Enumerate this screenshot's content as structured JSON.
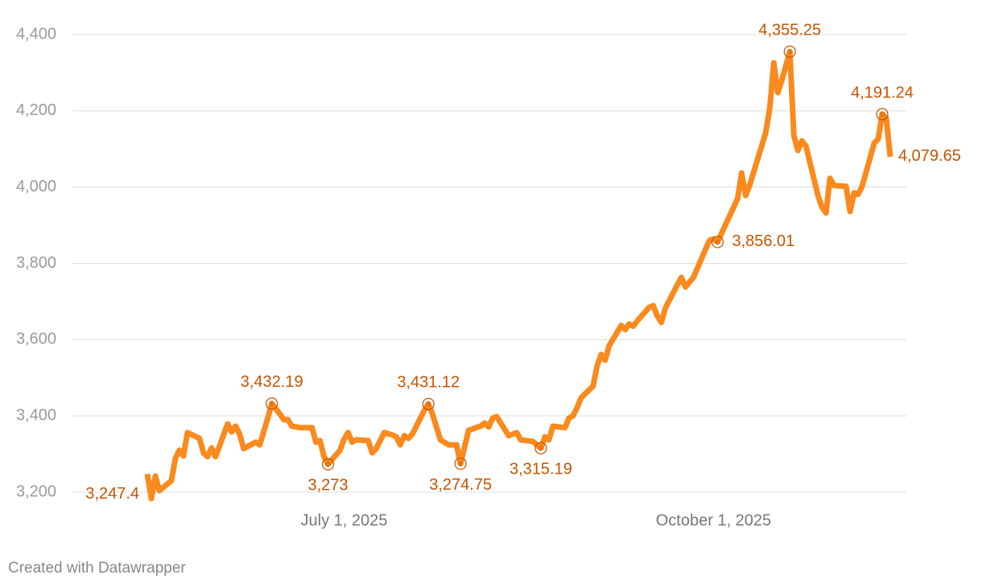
{
  "chart_data": {
    "type": "line",
    "credit": "Created with Datawrapper",
    "x": [
      "2025-05-13",
      "2025-05-14",
      "2025-05-15",
      "2025-05-16",
      "2025-05-19",
      "2025-05-20",
      "2025-05-21",
      "2025-05-22",
      "2025-05-23",
      "2025-05-26",
      "2025-05-27",
      "2025-05-28",
      "2025-05-29",
      "2025-05-30",
      "2025-06-02",
      "2025-06-03",
      "2025-06-04",
      "2025-06-05",
      "2025-06-06",
      "2025-06-09",
      "2025-06-10",
      "2025-06-12",
      "2025-06-13",
      "2025-06-15",
      "2025-06-16",
      "2025-06-17",
      "2025-06-18",
      "2025-06-20",
      "2025-06-23",
      "2025-06-24",
      "2025-06-25",
      "2025-06-26",
      "2025-06-27",
      "2025-06-30",
      "2025-07-01",
      "2025-07-02",
      "2025-07-03",
      "2025-07-04",
      "2025-07-07",
      "2025-07-08",
      "2025-07-09",
      "2025-07-11",
      "2025-07-13",
      "2025-07-14",
      "2025-07-15",
      "2025-07-16",
      "2025-07-17",
      "2025-07-18",
      "2025-07-21",
      "2025-07-22",
      "2025-07-23",
      "2025-07-25",
      "2025-07-27",
      "2025-07-29",
      "2025-07-30",
      "2025-08-01",
      "2025-08-04",
      "2025-08-05",
      "2025-08-06",
      "2025-08-07",
      "2025-08-08",
      "2025-08-11",
      "2025-08-13",
      "2025-08-14",
      "2025-08-17",
      "2025-08-18",
      "2025-08-19",
      "2025-08-20",
      "2025-08-21",
      "2025-08-22",
      "2025-08-25",
      "2025-08-26",
      "2025-08-27",
      "2025-08-28",
      "2025-08-29",
      "2025-09-01",
      "2025-09-02",
      "2025-09-03",
      "2025-09-04",
      "2025-09-05",
      "2025-09-08",
      "2025-09-09",
      "2025-09-10",
      "2025-09-11",
      "2025-09-12",
      "2025-09-15",
      "2025-09-16",
      "2025-09-17",
      "2025-09-18",
      "2025-09-19",
      "2025-09-22",
      "2025-09-23",
      "2025-09-24",
      "2025-09-26",
      "2025-09-29",
      "2025-09-30",
      "2025-10-01",
      "2025-10-02",
      "2025-10-03",
      "2025-10-06",
      "2025-10-07",
      "2025-10-08",
      "2025-10-09",
      "2025-10-10",
      "2025-10-14",
      "2025-10-15",
      "2025-10-16",
      "2025-10-17",
      "2025-10-18",
      "2025-10-20",
      "2025-10-21",
      "2025-10-22",
      "2025-10-23",
      "2025-10-24",
      "2025-10-27",
      "2025-10-28",
      "2025-10-29",
      "2025-10-30",
      "2025-10-31",
      "2025-11-03",
      "2025-11-04",
      "2025-11-05",
      "2025-11-06",
      "2025-11-07",
      "2025-11-10",
      "2025-11-11",
      "2025-11-12",
      "2025-11-13",
      "2025-11-14"
    ],
    "series": [
      {
        "color": "#fa8a1e",
        "values": [
          3247.4,
          3183,
          3242,
          3204,
          3230,
          3289,
          3310,
          3295,
          3356,
          3341,
          3303,
          3293,
          3316,
          3293,
          3379,
          3358,
          3373,
          3352,
          3314,
          3331,
          3324,
          3394,
          3432.19,
          3405,
          3390,
          3390,
          3373,
          3369,
          3369,
          3331,
          3335,
          3293,
          3273,
          3310,
          3339,
          3356,
          3331,
          3337,
          3335,
          3303,
          3314,
          3356,
          3350,
          3345,
          3324,
          3348,
          3341,
          3352,
          3415,
          3431.12,
          3405,
          3337,
          3324,
          3324,
          3274.75,
          3362,
          3373,
          3381,
          3371,
          3394,
          3398,
          3348,
          3356,
          3337,
          3333,
          3324,
          3315.19,
          3345,
          3337,
          3373,
          3369,
          3394,
          3400,
          3421,
          3447,
          3478,
          3531,
          3561,
          3546,
          3584,
          3637,
          3626,
          3641,
          3635,
          3649,
          3685,
          3689,
          3662,
          3645,
          3683,
          3744,
          3763,
          3738,
          3763,
          3837,
          3860,
          3864,
          3856.01,
          3879,
          3947,
          3970,
          4037,
          3978,
          4005,
          4143,
          4206,
          4326,
          4248,
          4280,
          4355.25,
          4136,
          4096,
          4121,
          4108,
          3978,
          3947,
          3932,
          4023,
          4004,
          4002,
          3936,
          3985,
          3981,
          4002,
          4115,
          4126,
          4191.24,
          4181,
          4079.65
        ],
        "value_labels": [
          "3,247.4",
          null,
          null,
          null,
          null,
          null,
          null,
          null,
          null,
          null,
          null,
          null,
          null,
          null,
          null,
          null,
          null,
          null,
          null,
          null,
          null,
          null,
          "3,432.19",
          null,
          null,
          null,
          null,
          null,
          null,
          null,
          null,
          null,
          "3,273",
          null,
          null,
          null,
          null,
          null,
          null,
          null,
          null,
          null,
          null,
          null,
          null,
          null,
          null,
          null,
          null,
          "3,431.12",
          null,
          null,
          null,
          null,
          "3,274.75",
          null,
          null,
          null,
          null,
          null,
          null,
          null,
          null,
          null,
          null,
          null,
          "3,315.19",
          null,
          null,
          null,
          null,
          null,
          null,
          null,
          null,
          null,
          null,
          null,
          null,
          null,
          null,
          null,
          null,
          null,
          null,
          null,
          null,
          null,
          null,
          null,
          null,
          null,
          null,
          null,
          null,
          null,
          null,
          "3,856.01",
          null,
          null,
          null,
          null,
          null,
          null,
          null,
          null,
          null,
          null,
          null,
          "4,355.25",
          null,
          null,
          null,
          null,
          null,
          null,
          null,
          null,
          null,
          null,
          null,
          null,
          null,
          null,
          null,
          null,
          "4,191.24",
          null,
          "4,079.65"
        ]
      }
    ],
    "value_label_color": "#c75300",
    "xlim": [
      "2025-05-13",
      "2025-11-14"
    ],
    "xticks": [
      {
        "value": "2025-07-01",
        "label": "July 1, 2025"
      },
      {
        "value": "2025-10-01",
        "label": "October 1, 2025"
      }
    ],
    "ylim": [
      3200,
      4400
    ],
    "yticks": [
      {
        "value": 3200,
        "label": "3,200"
      },
      {
        "value": 3400,
        "label": "3,400"
      },
      {
        "value": 3600,
        "label": "3,600"
      },
      {
        "value": 3800,
        "label": "3,800"
      },
      {
        "value": 4000,
        "label": "4,000"
      },
      {
        "value": 4200,
        "label": "4,200"
      },
      {
        "value": 4400,
        "label": "4,400"
      }
    ],
    "grid": true
  }
}
